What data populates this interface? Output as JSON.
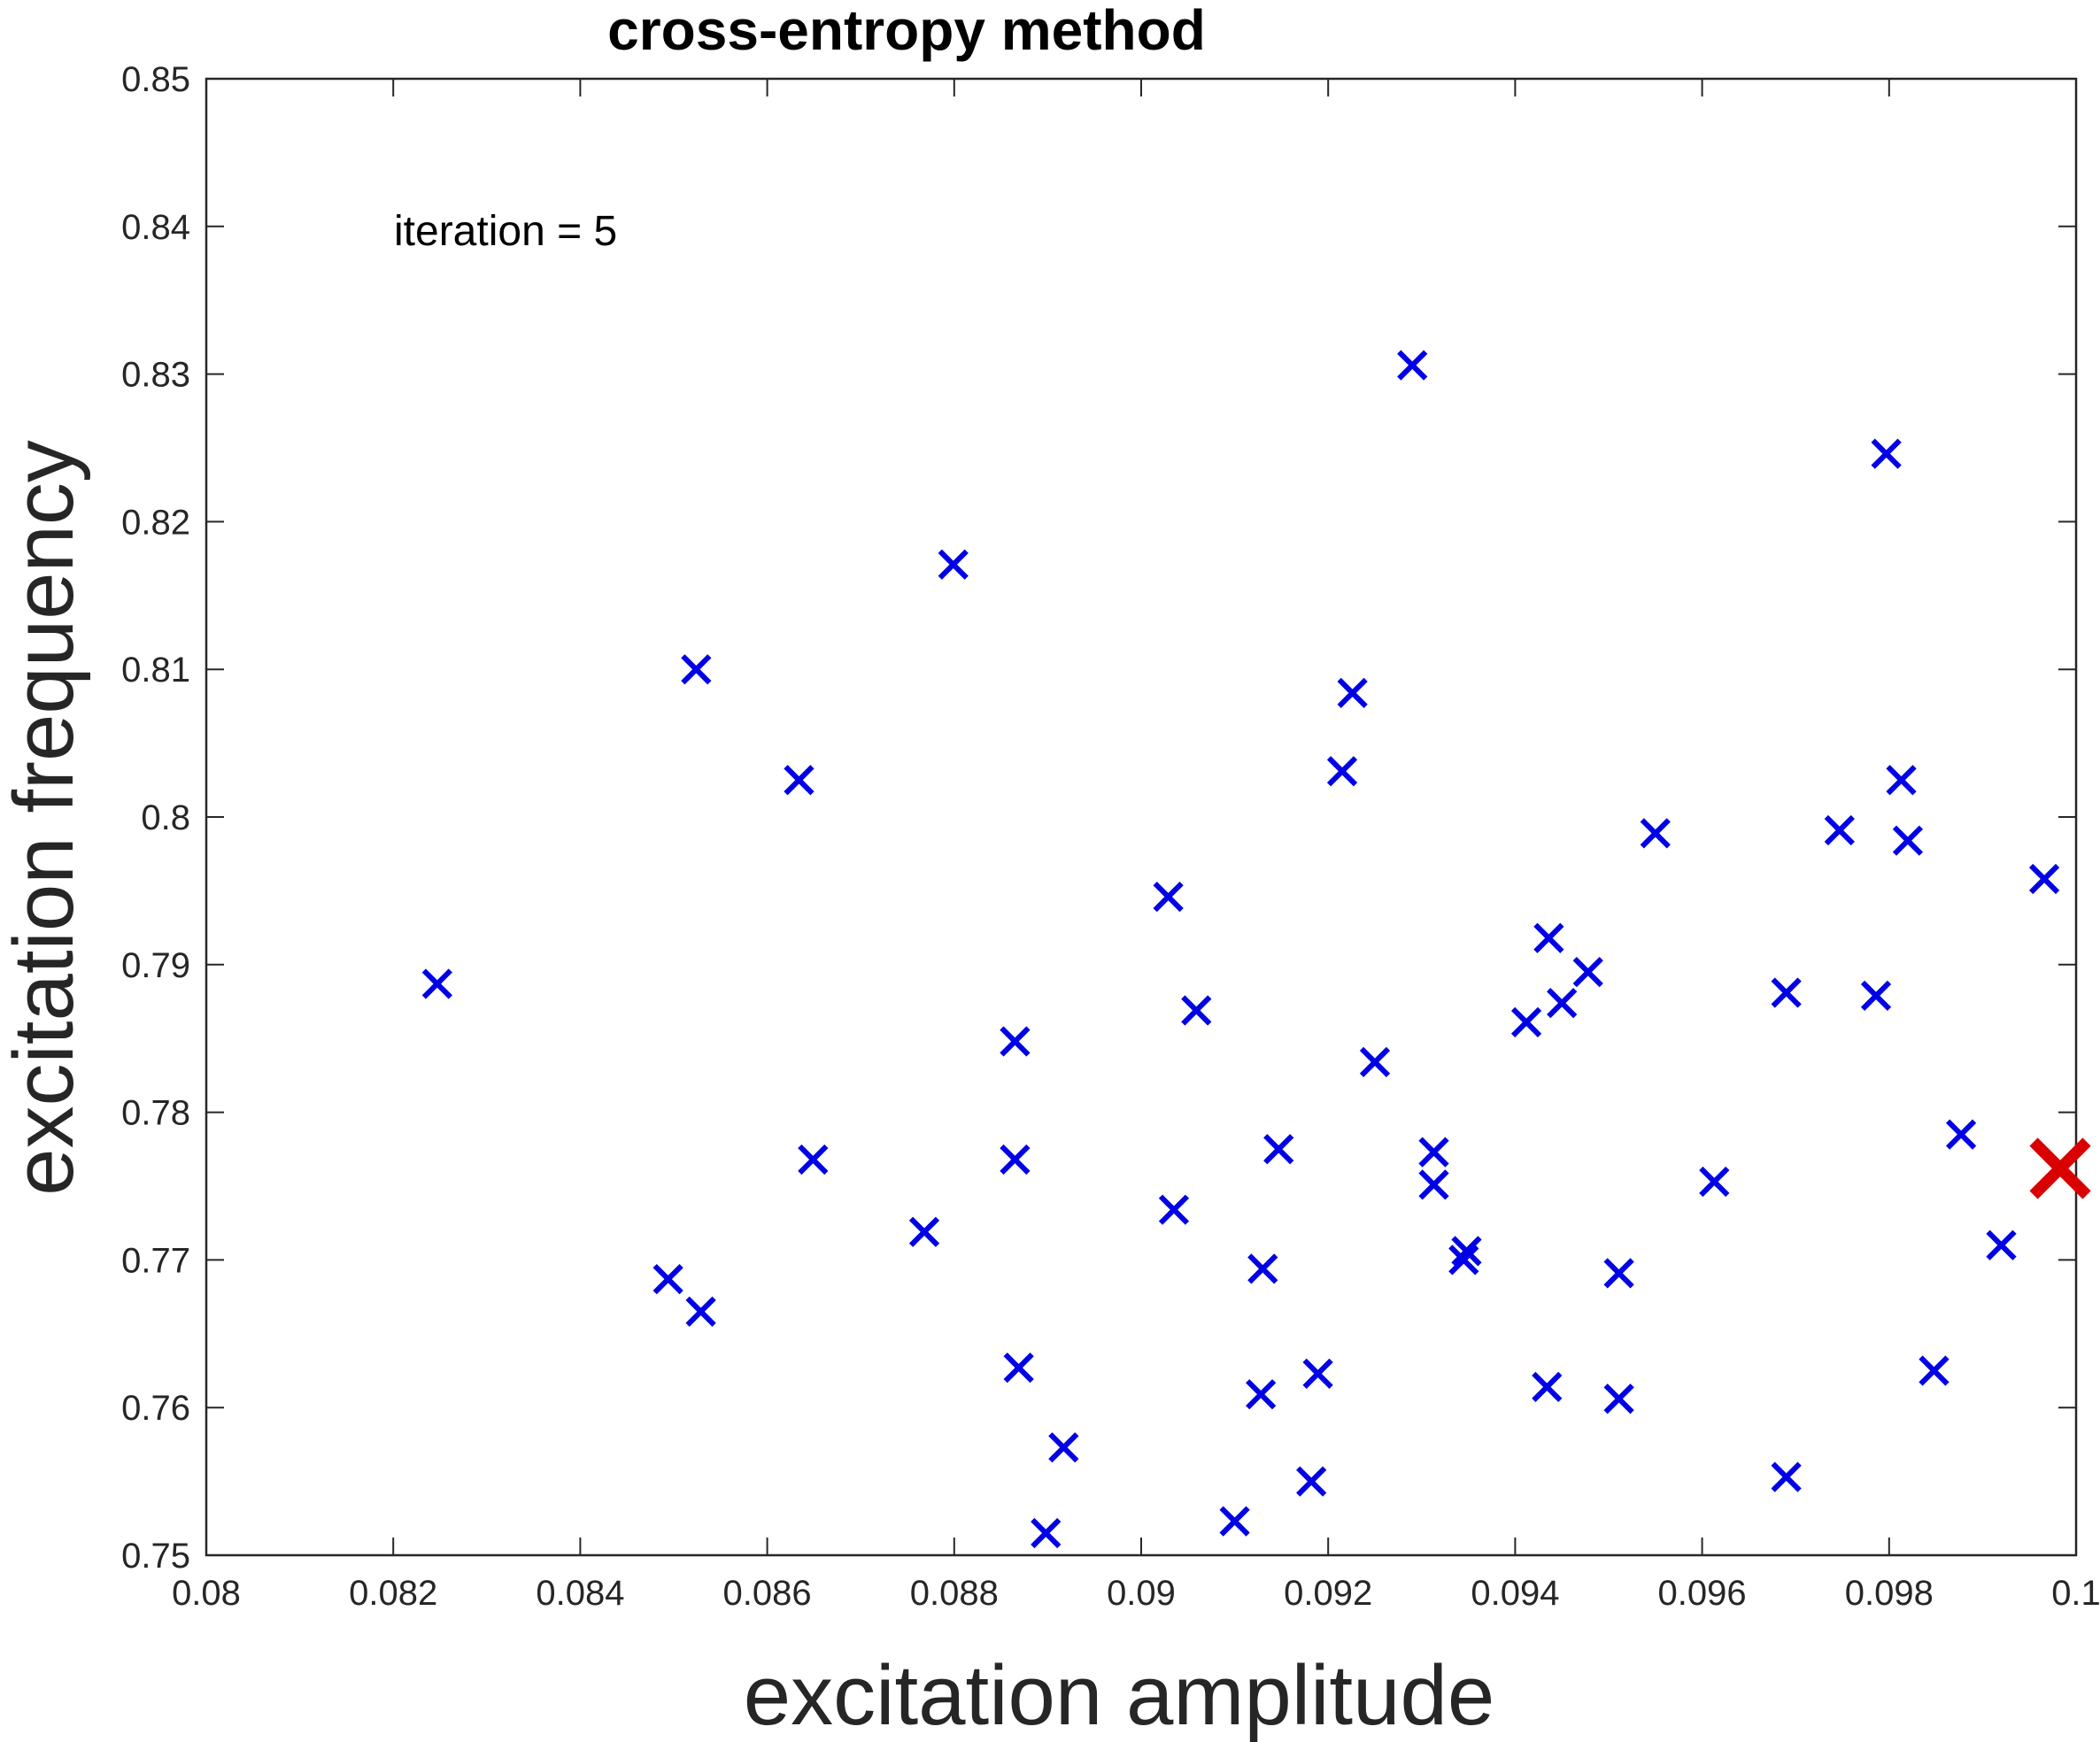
{
  "chart_data": {
    "type": "scatter",
    "title": "cross-entropy method",
    "xlabel": "excitation amplitude",
    "ylabel": "excitation frequency",
    "xlim": [
      0.08,
      0.1
    ],
    "ylim": [
      0.75,
      0.85
    ],
    "xticks": [
      "0.08",
      "0.082",
      "0.084",
      "0.086",
      "0.088",
      "0.09",
      "0.092",
      "0.094",
      "0.096",
      "0.098",
      "0.1"
    ],
    "yticks": [
      "0.75",
      "0.76",
      "0.77",
      "0.78",
      "0.79",
      "0.8",
      "0.81",
      "0.82",
      "0.83",
      "0.84",
      "0.85"
    ],
    "annotation": "iteration = 5",
    "grid": false,
    "marker": "x",
    "colors": {
      "samples": "#0000e6",
      "best": "#d90000",
      "axis": "#262626"
    },
    "series": [
      {
        "color": "#0000e6",
        "points": [
          [
            0.08247,
            0.7887
          ],
          [
            0.08494,
            0.7687
          ],
          [
            0.08529,
            0.7665
          ],
          [
            0.08524,
            0.81
          ],
          [
            0.08634,
            0.8025
          ],
          [
            0.08649,
            0.7768
          ],
          [
            0.08768,
            0.7719
          ],
          [
            0.08799,
            0.8171
          ],
          [
            0.08865,
            0.7848
          ],
          [
            0.08865,
            0.7768
          ],
          [
            0.08869,
            0.7627
          ],
          [
            0.08917,
            0.7573
          ],
          [
            0.08898,
            0.7515
          ],
          [
            0.09029,
            0.7946
          ],
          [
            0.09035,
            0.7734
          ],
          [
            0.09059,
            0.7869
          ],
          [
            0.091,
            0.7523
          ],
          [
            0.09128,
            0.7609
          ],
          [
            0.0913,
            0.7694
          ],
          [
            0.09147,
            0.7775
          ],
          [
            0.09182,
            0.755
          ],
          [
            0.09189,
            0.7623
          ],
          [
            0.09215,
            0.8031
          ],
          [
            0.09226,
            0.8084
          ],
          [
            0.0925,
            0.7834
          ],
          [
            0.0929,
            0.8306
          ],
          [
            0.09313,
            0.7773
          ],
          [
            0.09313,
            0.7751
          ],
          [
            0.09345,
            0.77
          ],
          [
            0.09348,
            0.7706
          ],
          [
            0.09412,
            0.7861
          ],
          [
            0.09434,
            0.7614
          ],
          [
            0.09436,
            0.7918
          ],
          [
            0.0945,
            0.7874
          ],
          [
            0.09478,
            0.7895
          ],
          [
            0.09511,
            0.7691
          ],
          [
            0.09511,
            0.7606
          ],
          [
            0.0955,
            0.7989
          ],
          [
            0.09613,
            0.7753
          ],
          [
            0.0969,
            0.7881
          ],
          [
            0.0969,
            0.7553
          ],
          [
            0.09747,
            0.7991
          ],
          [
            0.09786,
            0.7879
          ],
          [
            0.09797,
            0.8246
          ],
          [
            0.09813,
            0.8025
          ],
          [
            0.0982,
            0.7984
          ],
          [
            0.09848,
            0.7625
          ],
          [
            0.09877,
            0.7785
          ],
          [
            0.0992,
            0.771
          ],
          [
            0.09966,
            0.7958
          ]
        ]
      },
      {
        "color": "#d90000",
        "points": [
          [
            0.09983,
            0.7762
          ]
        ]
      }
    ]
  }
}
